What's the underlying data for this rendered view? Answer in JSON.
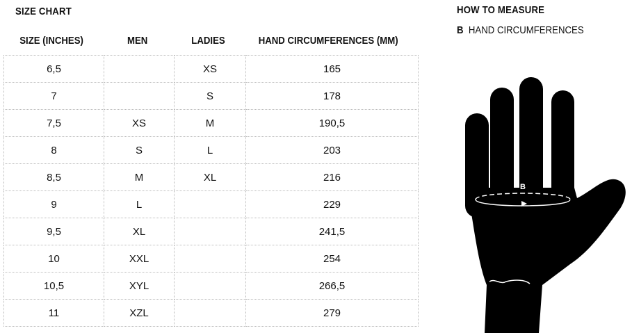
{
  "title": "SIZE CHART",
  "columns": [
    "SIZE (INCHES)",
    "MEN",
    "LADIES",
    "HAND CIRCUMFERENCES (MM)"
  ],
  "rows": [
    [
      "6,5",
      "",
      "XS",
      "165"
    ],
    [
      "7",
      "",
      "S",
      "178"
    ],
    [
      "7,5",
      "XS",
      "M",
      "190,5"
    ],
    [
      "8",
      "S",
      "L",
      "203"
    ],
    [
      "8,5",
      "M",
      "XL",
      "216"
    ],
    [
      "9",
      "L",
      "",
      "229"
    ],
    [
      "9,5",
      "XL",
      "",
      "241,5"
    ],
    [
      "10",
      "XXL",
      "",
      "254"
    ],
    [
      "10,5",
      "XYL",
      "",
      "266,5"
    ],
    [
      "11",
      "XZL",
      "",
      "279"
    ]
  ],
  "measure": {
    "title": "HOW TO MEASURE",
    "key": "B",
    "label": "HAND CIRCUMFERENCES",
    "marker": "B"
  }
}
